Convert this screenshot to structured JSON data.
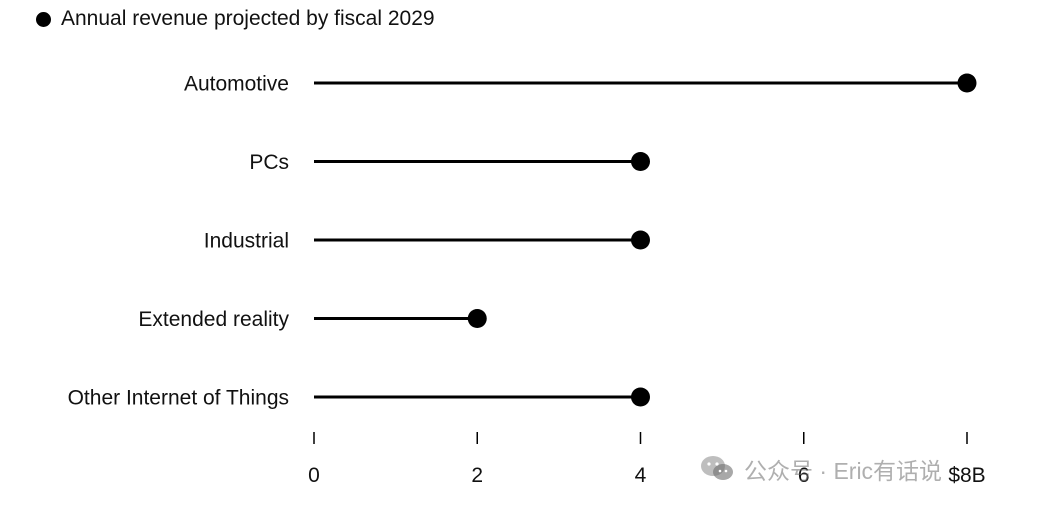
{
  "legend": {
    "label": "Annual revenue projected by fiscal 2029"
  },
  "watermark": {
    "text": "公众号 · Eric有话说"
  },
  "colors": {
    "mark": "#000000",
    "text": "#111111",
    "background": "#ffffff"
  },
  "chart_data": {
    "type": "lollipop",
    "title": "",
    "xlabel": "",
    "ylabel": "",
    "categories": [
      "Automotive",
      "PCs",
      "Industrial",
      "Extended reality",
      "Other Internet of Things"
    ],
    "series": [
      {
        "name": "Annual revenue projected by fiscal 2029",
        "values": [
          8,
          4,
          4,
          2,
          4
        ]
      }
    ],
    "xlim": [
      0,
      8
    ],
    "x_ticks": [
      0,
      2,
      4,
      6,
      8
    ],
    "x_tick_labels": [
      "0",
      "2",
      "4",
      "6",
      "$8B"
    ],
    "unit": "$B",
    "grid": false,
    "legend_position": "top-left"
  }
}
